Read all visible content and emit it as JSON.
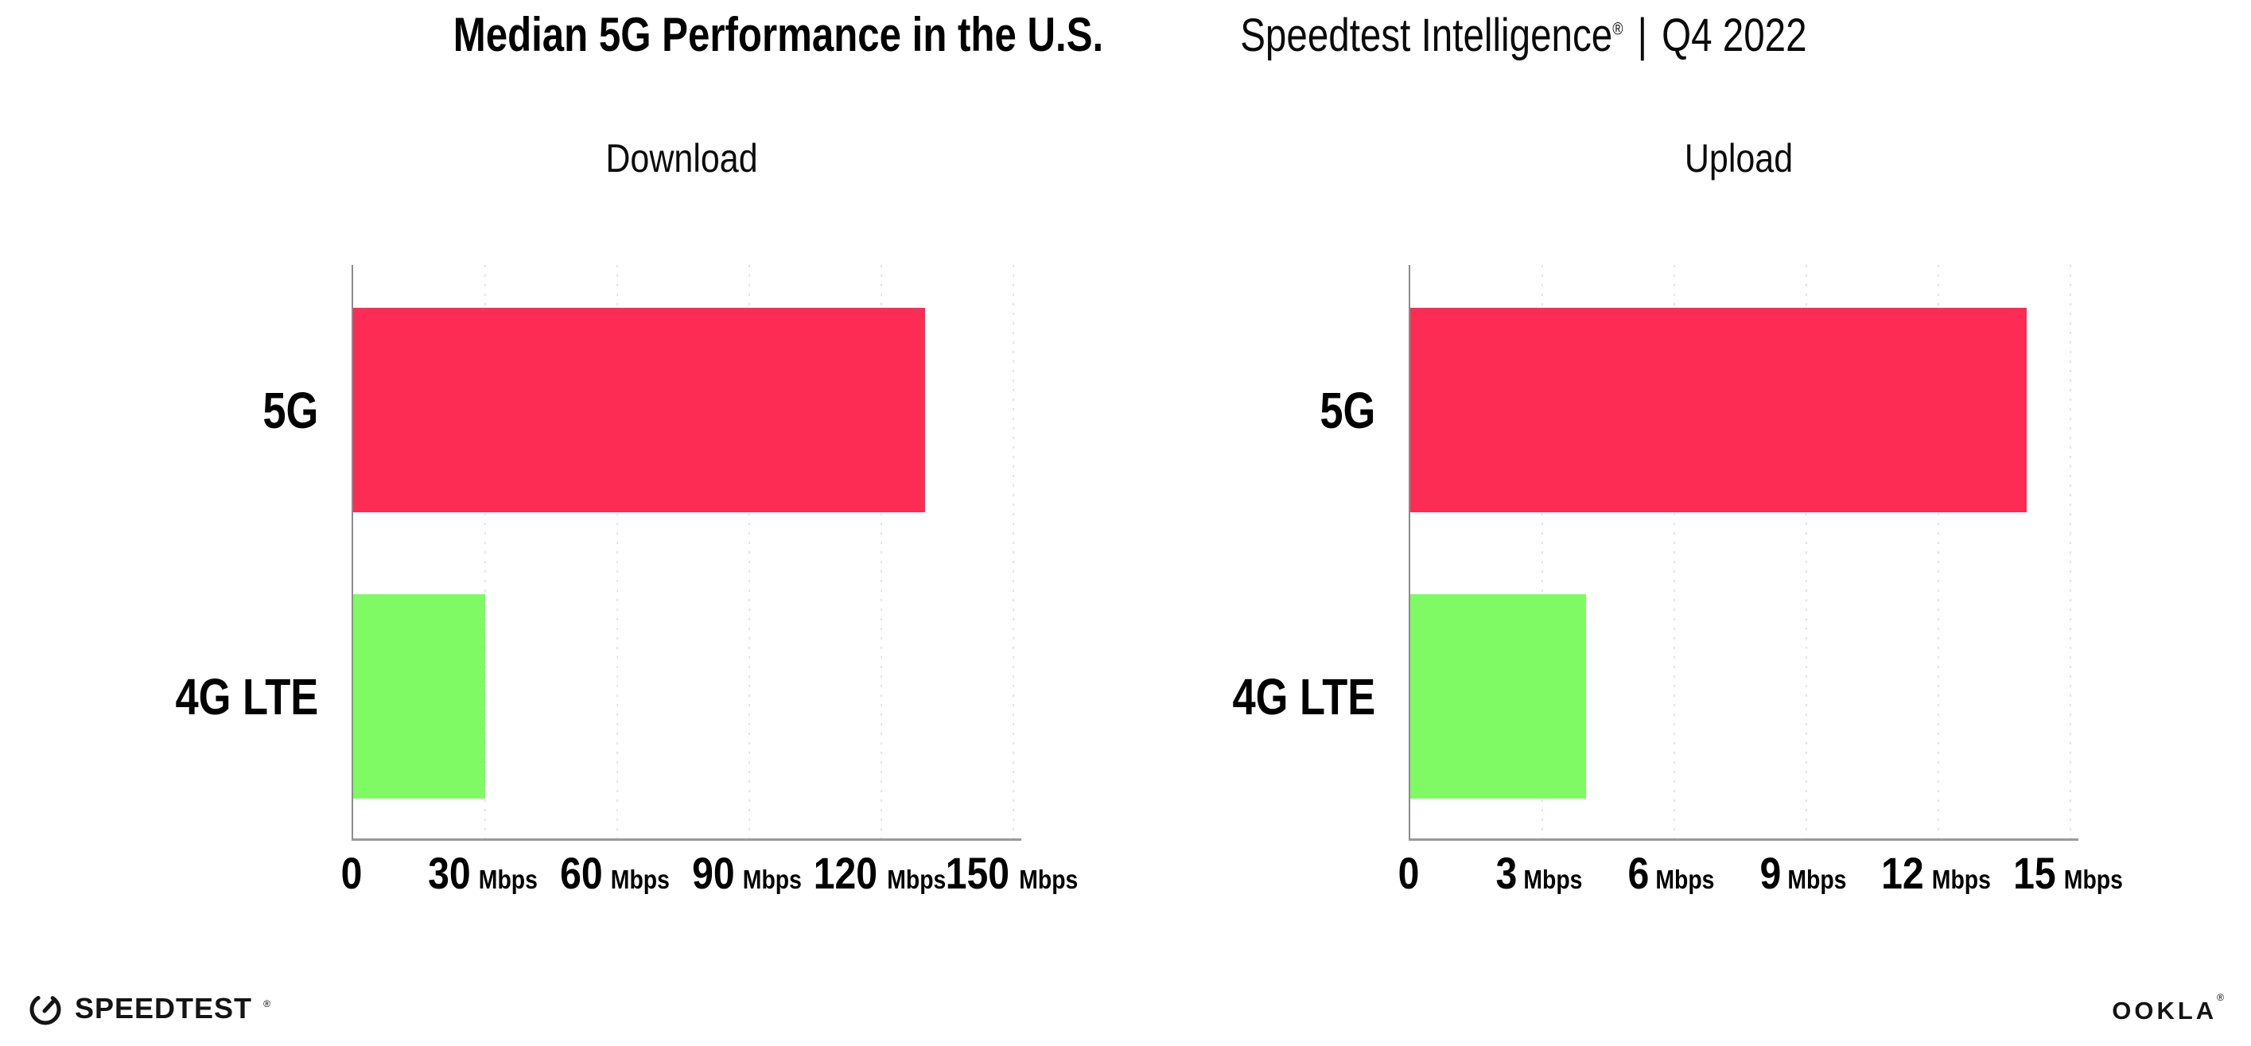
{
  "header": {
    "title": "Median 5G Performance in the U.S.",
    "subtitle_brand": "Speedtest Intelligence",
    "subtitle_reg": "®",
    "subtitle_rest": "| Q4 2022"
  },
  "chart_data": [
    {
      "type": "bar",
      "orientation": "horizontal",
      "title": "Download",
      "categories": [
        "5G",
        "4G LTE"
      ],
      "values": [
        130,
        30
      ],
      "unit": "Mbps",
      "xlim": [
        0,
        150
      ],
      "xticks": [
        0,
        30,
        60,
        90,
        120,
        150
      ],
      "bar_colors": [
        "#fc2c55",
        "#7ffa65"
      ],
      "grid": "dotted-vertical",
      "legend": "none"
    },
    {
      "type": "bar",
      "orientation": "horizontal",
      "title": "Upload",
      "categories": [
        "5G",
        "4G LTE"
      ],
      "values": [
        14,
        4
      ],
      "unit": "Mbps",
      "xlim": [
        0,
        15
      ],
      "xticks": [
        0,
        3,
        6,
        9,
        12,
        15
      ],
      "bar_colors": [
        "#fc2c55",
        "#7ffa65"
      ],
      "grid": "dotted-vertical",
      "legend": "none"
    }
  ],
  "footer": {
    "speedtest_label": "SPEEDTEST",
    "speedtest_reg": "®",
    "ookla_label": "OOKLA",
    "ookla_reg": "®"
  },
  "colors": {
    "bar_5g": "#fc2c55",
    "bar_4g_lte": "#7ffa65",
    "gridline": "#e4e4ee",
    "axis": "#9a9a9a",
    "text": "#000000"
  }
}
